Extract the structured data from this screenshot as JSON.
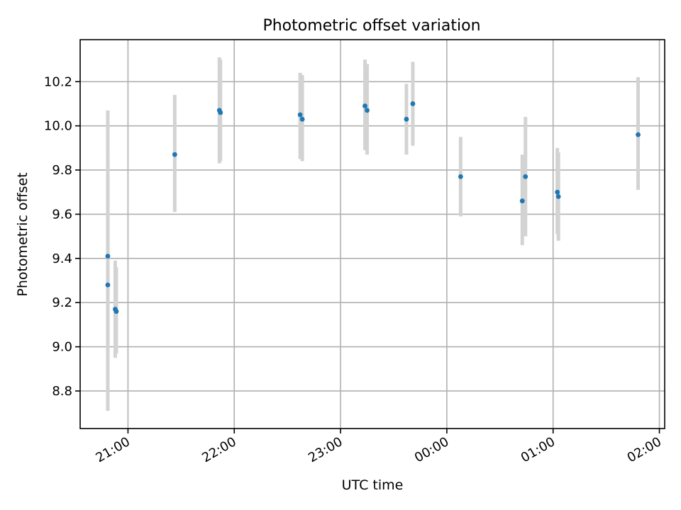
{
  "chart_data": {
    "type": "scatter",
    "title": "Photometric offset variation",
    "xlabel": "UTC time",
    "ylabel": "Photometric offset",
    "grid": true,
    "xlim_hours": [
      20.55,
      26.05
    ],
    "ylim": [
      8.63,
      10.39
    ],
    "x_ticks": [
      {
        "hour": 21,
        "label": "21:00"
      },
      {
        "hour": 22,
        "label": "22:00"
      },
      {
        "hour": 23,
        "label": "23:00"
      },
      {
        "hour": 24,
        "label": "00:00"
      },
      {
        "hour": 25,
        "label": "01:00"
      },
      {
        "hour": 26,
        "label": "02:00"
      }
    ],
    "y_ticks": [
      {
        "value": 8.8,
        "label": "8.8"
      },
      {
        "value": 9.0,
        "label": "9.0"
      },
      {
        "value": 9.2,
        "label": "9.2"
      },
      {
        "value": 9.4,
        "label": "9.4"
      },
      {
        "value": 9.6,
        "label": "9.6"
      },
      {
        "value": 9.8,
        "label": "9.8"
      },
      {
        "value": 10.0,
        "label": "10.0"
      },
      {
        "value": 10.2,
        "label": "10.2"
      }
    ],
    "marker_color": "#1f77b4",
    "errorbar_color": "#d3d3d3",
    "points": [
      {
        "x": 20.81,
        "y": 9.41,
        "lo": 8.96,
        "hi": 9.86
      },
      {
        "x": 20.81,
        "y": 9.28,
        "lo": 8.71,
        "hi": 10.07
      },
      {
        "x": 20.88,
        "y": 9.17,
        "lo": 8.95,
        "hi": 9.39
      },
      {
        "x": 20.89,
        "y": 9.16,
        "lo": 8.97,
        "hi": 9.36
      },
      {
        "x": 21.44,
        "y": 9.87,
        "lo": 9.61,
        "hi": 10.14
      },
      {
        "x": 21.86,
        "y": 10.07,
        "lo": 9.83,
        "hi": 10.31
      },
      {
        "x": 21.87,
        "y": 10.06,
        "lo": 9.84,
        "hi": 10.3
      },
      {
        "x": 22.62,
        "y": 10.05,
        "lo": 9.85,
        "hi": 10.24
      },
      {
        "x": 22.64,
        "y": 10.03,
        "lo": 9.84,
        "hi": 10.23
      },
      {
        "x": 23.23,
        "y": 10.09,
        "lo": 9.89,
        "hi": 10.3
      },
      {
        "x": 23.25,
        "y": 10.07,
        "lo": 9.87,
        "hi": 10.28
      },
      {
        "x": 23.62,
        "y": 10.03,
        "lo": 9.87,
        "hi": 10.19
      },
      {
        "x": 23.68,
        "y": 10.1,
        "lo": 9.91,
        "hi": 10.29
      },
      {
        "x": 24.13,
        "y": 9.77,
        "lo": 9.59,
        "hi": 9.95
      },
      {
        "x": 24.71,
        "y": 9.66,
        "lo": 9.46,
        "hi": 9.87
      },
      {
        "x": 24.74,
        "y": 9.77,
        "lo": 9.5,
        "hi": 10.04
      },
      {
        "x": 25.04,
        "y": 9.7,
        "lo": 9.51,
        "hi": 9.9
      },
      {
        "x": 25.05,
        "y": 9.68,
        "lo": 9.48,
        "hi": 9.88
      },
      {
        "x": 25.8,
        "y": 9.96,
        "lo": 9.71,
        "hi": 10.22
      }
    ]
  }
}
